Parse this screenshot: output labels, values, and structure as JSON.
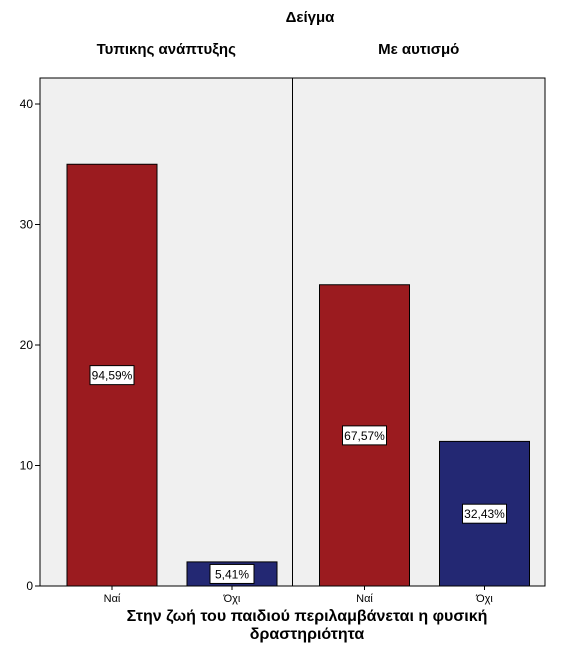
{
  "chart_data": {
    "type": "bar",
    "title": "Δείγμα",
    "xlabel_lines": [
      "Στην ζωή του παιδιού περιλαμβάνεται η φυσική",
      "δραστηριότητα"
    ],
    "ylabel": "",
    "ylim": [
      0,
      40
    ],
    "yticks": [
      0,
      10,
      20,
      30,
      40
    ],
    "grid": false,
    "panels": [
      {
        "title": "Τυπικης ανάπτυξης",
        "categories": [
          "Ναί",
          "Όχι"
        ],
        "values": [
          35,
          2
        ],
        "labels": [
          "94,59%",
          "5,41%"
        ]
      },
      {
        "title": "Με αυτισμό",
        "categories": [
          "Ναί",
          "Όχι"
        ],
        "values": [
          25,
          12
        ],
        "labels": [
          "67,57%",
          "32,43%"
        ]
      }
    ],
    "colors": {
      "Ναί": "#9b1b1f",
      "Όχι": "#232873",
      "panel_background": "#f0f0f0",
      "axis": "#000000"
    }
  }
}
